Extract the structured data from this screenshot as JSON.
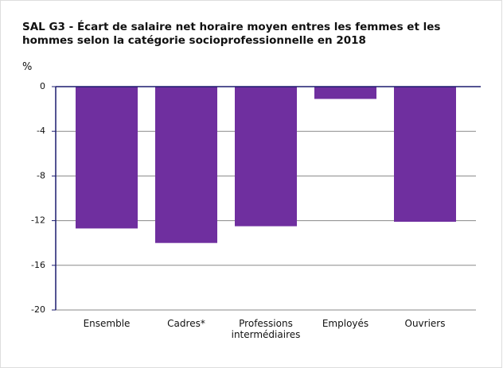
{
  "chart_data": {
    "type": "bar",
    "title": "SAL G3 - Écart de salaire net horaire moyen entres les femmes et les hommes selon la catégorie socioprofessionnelle en 2018",
    "y_label": "%",
    "categories": [
      "Ensemble",
      "Cadres*",
      "Professions intermédiaires",
      "Employés",
      "Ouvriers"
    ],
    "values": [
      -12.7,
      -14.0,
      -12.5,
      -1.1,
      -12.1
    ],
    "color": "#6f2f9f",
    "ylim": [
      -20,
      0
    ],
    "yticks": [
      0,
      -4,
      -8,
      -12,
      -16,
      -20
    ],
    "grid": true
  }
}
